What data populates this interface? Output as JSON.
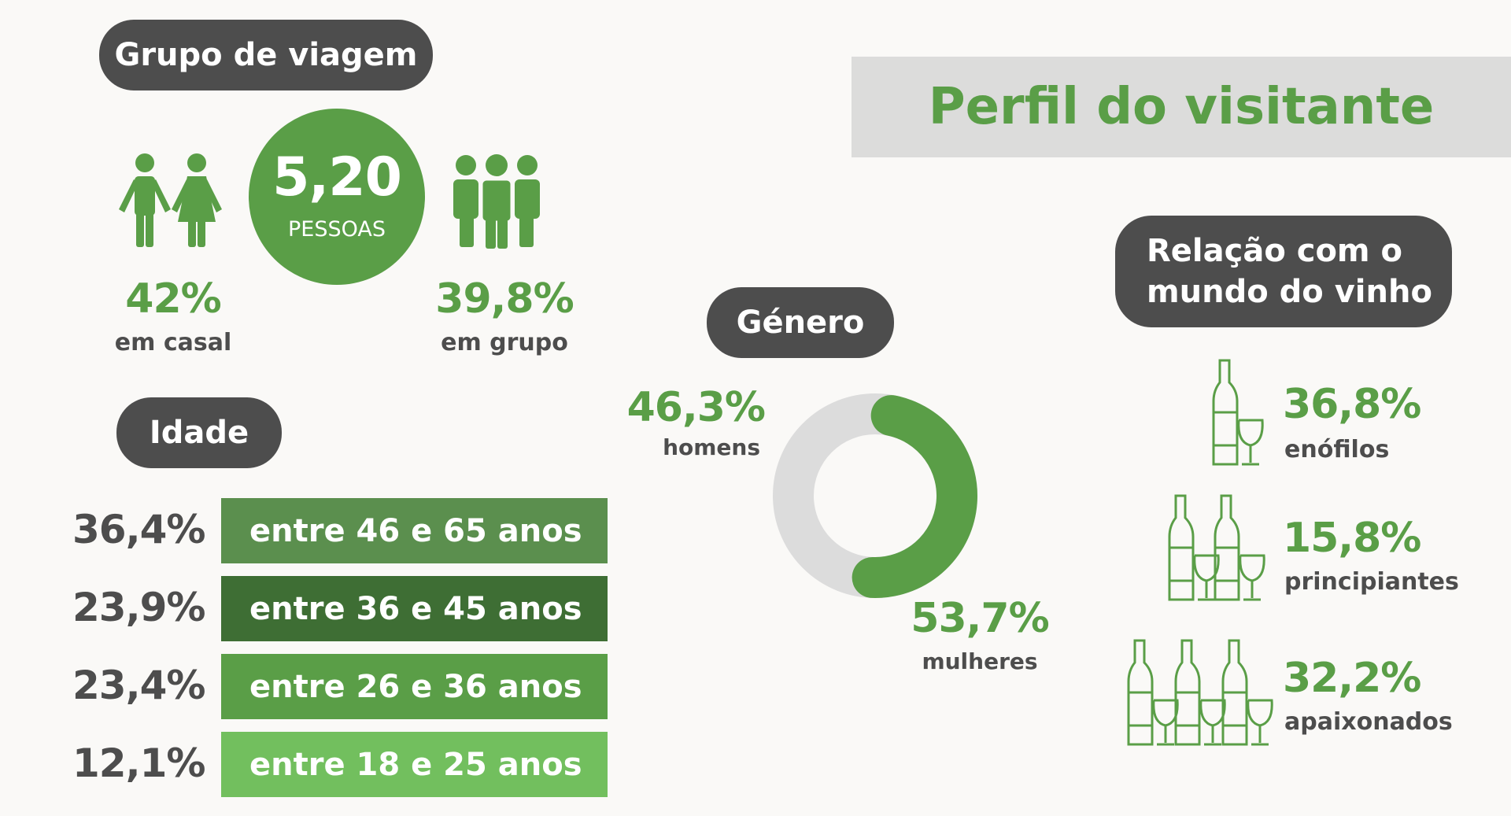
{
  "title": "Perfil do visitante",
  "travel_group": {
    "heading": "Grupo de viagem",
    "average": {
      "value": "5,20",
      "unit": "PESSOAS"
    },
    "couple": {
      "percent": "42%",
      "label": "em casal"
    },
    "group": {
      "percent": "39,8%",
      "label": "em grupo"
    }
  },
  "age": {
    "heading": "Idade",
    "rows": [
      {
        "percent": "36,4%",
        "label": "entre 46 e 65 anos",
        "color": "#5b8f4e"
      },
      {
        "percent": "23,9%",
        "label": "entre 36 e 45 anos",
        "color": "#3e6e34"
      },
      {
        "percent": "23,4%",
        "label": "entre 26 e 36 anos",
        "color": "#5a9e47"
      },
      {
        "percent": "12,1%",
        "label": "entre 18 e 25 anos",
        "color": "#72bf5e"
      }
    ]
  },
  "gender": {
    "heading": "Género",
    "men": {
      "percent": "46,3%",
      "label": "homens",
      "fraction": 0.463,
      "color": "#dcdcdc"
    },
    "women": {
      "percent": "53,7%",
      "label": "mulheres",
      "fraction": 0.537,
      "color": "#5a9e47"
    }
  },
  "wine_relation": {
    "heading_line1": "Relação com o",
    "heading_line2": "mundo do vinho",
    "items": [
      {
        "percent": "36,8%",
        "label": "enófilos",
        "icon": "wine-bottle-glass-icon"
      },
      {
        "percent": "15,8%",
        "label": "principiantes",
        "icon": "two-wine-bottles-glasses-icon"
      },
      {
        "percent": "32,2%",
        "label": "apaixonados",
        "icon": "three-wine-bottles-glasses-icon"
      }
    ]
  },
  "colors": {
    "accent": "#5a9e47",
    "dark": "#4d4d4d",
    "band": "#dcdcdb"
  }
}
